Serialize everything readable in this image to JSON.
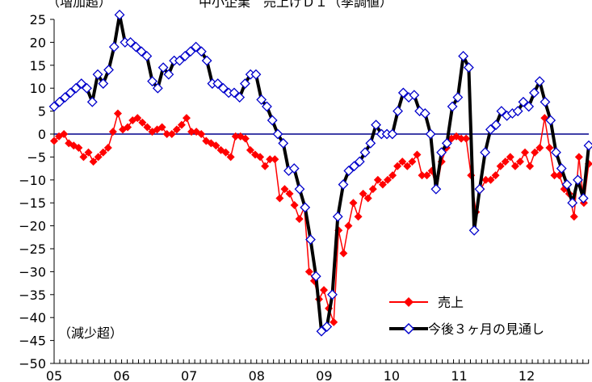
{
  "chart_data": {
    "type": "line",
    "title_left": "（増加超）",
    "title_main": "中小企業　売上げＤＩ（季調値）",
    "note_bottom": "（減少超）",
    "ylim": [
      -50,
      25
    ],
    "yticks": [
      25,
      20,
      15,
      10,
      5,
      0,
      -5,
      -10,
      -15,
      -20,
      -25,
      -30,
      -35,
      -40,
      -45,
      -50
    ],
    "ytick_labels": [
      "25",
      "20",
      "15",
      "10",
      "5",
      "0",
      "−5",
      "−10",
      "−15",
      "−20",
      "−25",
      "−30",
      "−35",
      "−40",
      "−45",
      "−50"
    ],
    "x_labels": [
      "05",
      "06",
      "07",
      "08",
      "09",
      "10",
      "11",
      "12"
    ],
    "x_start": 2005.0,
    "x_end": 2012.92,
    "grid": false,
    "legend_position": "lower-right",
    "colors": {
      "sales": "#ff0000",
      "outlook_line": "#000000",
      "outlook_marker": "#0000cc",
      "zero_line": "#00008b"
    },
    "series": [
      {
        "name": "売上",
        "values": [
          -1.5,
          -0.5,
          0,
          -2,
          -2.5,
          -3,
          -5,
          -4,
          -6,
          -5,
          -4,
          -3,
          0.5,
          4.5,
          1,
          1.5,
          3,
          3.5,
          2.5,
          1.5,
          0.5,
          1,
          1.5,
          0,
          0,
          1,
          2,
          3.5,
          0.5,
          0.5,
          0,
          -1.5,
          -2,
          -2.5,
          -3.5,
          -4,
          -5,
          -0.5,
          -0.5,
          -1,
          -3.5,
          -4.5,
          -5,
          -7,
          -5.5,
          -5.5,
          -14,
          -12,
          -13,
          -15.5,
          -18.5,
          -16,
          -30,
          -32,
          -36,
          -34,
          -38,
          -41,
          -21,
          -26,
          -20,
          -15,
          -18,
          -13,
          -14,
          -12,
          -10,
          -11,
          -10,
          -9,
          -7,
          -6,
          -7,
          -6,
          -4.5,
          -9,
          -9,
          -8,
          -12,
          -6,
          -3,
          -1,
          -0.5,
          -1,
          -1,
          -9,
          -17,
          -12,
          -10,
          -10,
          -9,
          -7,
          -6,
          -5,
          -7,
          -6,
          -4,
          -7,
          -4,
          -3,
          3.5,
          -3,
          -9,
          -9,
          -12,
          -13,
          -18,
          -5,
          -15,
          -6.5
        ]
      },
      {
        "name": "今後３ヶ月の見通し",
        "values": [
          6,
          7,
          8,
          9,
          10,
          11,
          10,
          7,
          13,
          11,
          14,
          19,
          26,
          20,
          20,
          19,
          18,
          17,
          11.5,
          10,
          14.5,
          13,
          16,
          16,
          17,
          18,
          19,
          18,
          16,
          11,
          11,
          10,
          9,
          9,
          8,
          11,
          13,
          13,
          7.5,
          6,
          3,
          0,
          -2,
          -8,
          -7.5,
          -12,
          -16,
          -23,
          -31,
          -43,
          -42,
          -35,
          -18,
          -11,
          -8,
          -7,
          -6,
          -4,
          -2,
          2,
          0,
          0,
          0,
          5,
          9,
          8,
          8.5,
          5,
          4.5,
          0,
          -12,
          -4,
          -2,
          6,
          8,
          17,
          14.5,
          -21,
          -12,
          -4,
          1,
          2,
          5,
          4,
          4.5,
          5,
          7,
          6,
          9,
          11.5,
          7,
          3,
          -4,
          -7.5,
          -11,
          -15,
          -10,
          -14,
          -2.5
        ]
      }
    ]
  }
}
